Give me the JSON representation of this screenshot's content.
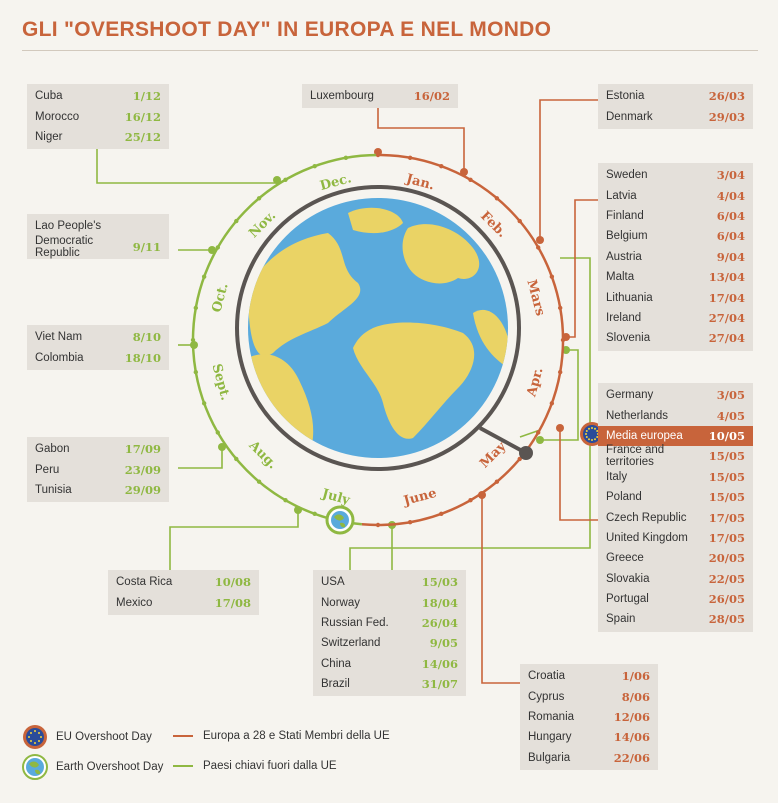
{
  "title": "GLI \"OVERSHOOT DAY\" IN EUROPA E NEL MONDO",
  "colors": {
    "eu_line": "#c8643b",
    "world_line": "#8fb842",
    "ocean": "#5aaadc",
    "land": "#ead365",
    "box_bg": "#e4e0da"
  },
  "months": [
    "Jan.",
    "Feb.",
    "Mars",
    "Apr.",
    "May",
    "June",
    "July",
    "Aug.",
    "Sept.",
    "Oct.",
    "Nov.",
    "Dec."
  ],
  "boxes": {
    "cuba_group": [
      {
        "name": "Cuba",
        "date": "1/12"
      },
      {
        "name": "Morocco",
        "date": "16/12"
      },
      {
        "name": "Niger",
        "date": "25/12"
      }
    ],
    "lao_group": [
      {
        "name": "Lao People's",
        "date": ""
      },
      {
        "name": "Democratic Republic",
        "date": "9/11"
      }
    ],
    "vietnam_group": [
      {
        "name": "Viet Nam",
        "date": "8/10"
      },
      {
        "name": "Colombia",
        "date": "18/10"
      }
    ],
    "gabon_group": [
      {
        "name": "Gabon",
        "date": "17/09"
      },
      {
        "name": "Peru",
        "date": "23/09"
      },
      {
        "name": "Tunisia",
        "date": "29/09"
      }
    ],
    "costarica_group": [
      {
        "name": "Costa Rica",
        "date": "10/08"
      },
      {
        "name": "Mexico",
        "date": "17/08"
      }
    ],
    "usa_group": [
      {
        "name": "USA",
        "date": "15/03"
      },
      {
        "name": "Norway",
        "date": "18/04"
      },
      {
        "name": "Russian Fed.",
        "date": "26/04"
      },
      {
        "name": "Switzerland",
        "date": "9/05"
      },
      {
        "name": "China",
        "date": "14/06"
      },
      {
        "name": "Brazil",
        "date": "31/07"
      }
    ],
    "luxembourg_group": [
      {
        "name": "Luxembourg",
        "date": "16/02"
      }
    ],
    "estonia_group": [
      {
        "name": "Estonia",
        "date": "26/03"
      },
      {
        "name": "Denmark",
        "date": "29/03"
      }
    ],
    "sweden_group": [
      {
        "name": "Sweden",
        "date": "3/04"
      },
      {
        "name": "Latvia",
        "date": "4/04"
      },
      {
        "name": "Finland",
        "date": "6/04"
      },
      {
        "name": "Belgium",
        "date": "6/04"
      },
      {
        "name": "Austria",
        "date": "9/04"
      },
      {
        "name": "Malta",
        "date": "13/04"
      },
      {
        "name": "Lithuania",
        "date": "17/04"
      },
      {
        "name": "Ireland",
        "date": "27/04"
      },
      {
        "name": "Slovenia",
        "date": "27/04"
      }
    ],
    "germany_group": [
      {
        "name": "Germany",
        "date": "3/05"
      },
      {
        "name": "Netherlands",
        "date": "4/05"
      },
      {
        "name": "Media europea",
        "date": "10/05",
        "highlight": true
      },
      {
        "name": "France and territories",
        "date": "15/05"
      },
      {
        "name": "Italy",
        "date": "15/05"
      },
      {
        "name": "Poland",
        "date": "15/05"
      },
      {
        "name": "Czech Republic",
        "date": "17/05"
      },
      {
        "name": "United Kingdom",
        "date": "17/05"
      },
      {
        "name": "Greece",
        "date": "20/05"
      },
      {
        "name": "Slovakia",
        "date": "22/05"
      },
      {
        "name": "Portugal",
        "date": "26/05"
      },
      {
        "name": "Spain",
        "date": "28/05"
      }
    ],
    "croatia_group": [
      {
        "name": "Croatia",
        "date": "1/06"
      },
      {
        "name": "Cyprus",
        "date": "8/06"
      },
      {
        "name": "Romania",
        "date": "12/06"
      },
      {
        "name": "Hungary",
        "date": "14/06"
      },
      {
        "name": "Bulgaria",
        "date": "22/06"
      }
    ]
  },
  "legend": {
    "eu_day": "EU Overshoot Day",
    "earth_day": "Earth Overshoot Day",
    "eu_line": "Europa a 28 e Stati Membri della UE",
    "world_line": "Paesi chiavi fuori dalla UE"
  }
}
